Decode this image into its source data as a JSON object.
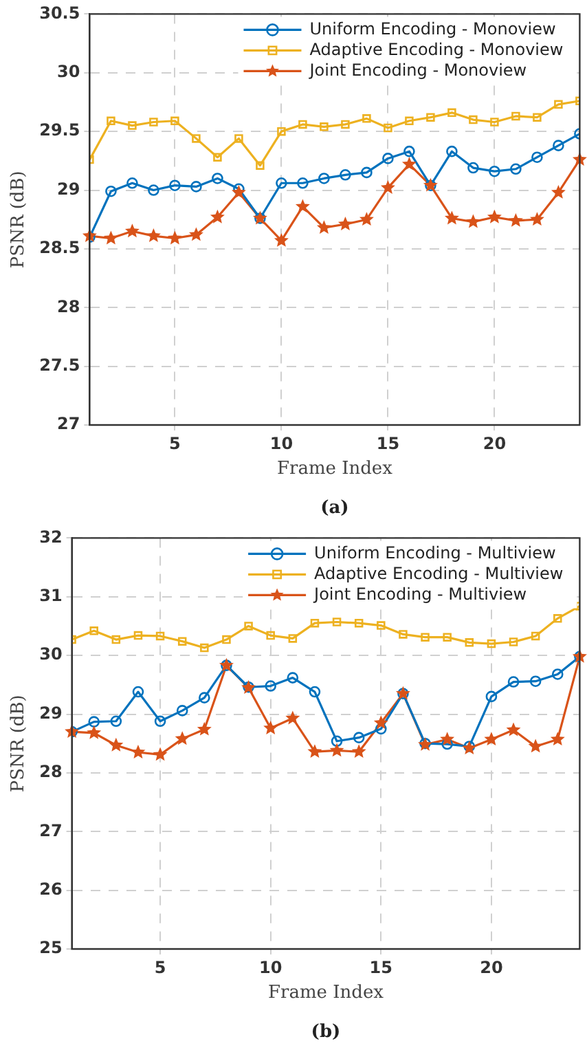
{
  "chart_data": [
    {
      "type": "line",
      "xlabel": "Frame Index",
      "ylabel": "PSNR (dB)",
      "annotations": [
        "(a)"
      ],
      "legend": "top right",
      "grid": true,
      "x": [
        1,
        2,
        3,
        4,
        5,
        6,
        7,
        8,
        9,
        10,
        11,
        12,
        13,
        14,
        15,
        16,
        17,
        18,
        19,
        20,
        21,
        22,
        23,
        24
      ],
      "xlim": [
        1,
        24
      ],
      "xticks": [
        5,
        10,
        15,
        20
      ],
      "ylim": [
        27,
        30.5
      ],
      "yticks": [
        27,
        27.5,
        28,
        28.5,
        29,
        29.5,
        30,
        30.5
      ],
      "series": [
        {
          "name": "Uniform Encoding - Monoview",
          "color": "#0072bd",
          "marker": "circle",
          "values": [
            28.6,
            28.99,
            29.06,
            29.0,
            29.04,
            29.03,
            29.1,
            29.01,
            28.76,
            29.06,
            29.06,
            29.1,
            29.13,
            29.15,
            29.27,
            29.33,
            29.04,
            29.33,
            29.19,
            29.16,
            29.18,
            29.28,
            29.38,
            29.48
          ]
        },
        {
          "name": "Adaptive Encoding - Monoview",
          "color": "#edb120",
          "marker": "square",
          "values": [
            29.26,
            29.59,
            29.55,
            29.58,
            29.59,
            29.44,
            29.28,
            29.44,
            29.21,
            29.5,
            29.56,
            29.54,
            29.56,
            29.61,
            29.53,
            29.59,
            29.62,
            29.66,
            29.6,
            29.58,
            29.63,
            29.62,
            29.73,
            29.76
          ]
        },
        {
          "name": "Joint Encoding - Monoview",
          "color": "#d95319",
          "marker": "star",
          "values": [
            28.61,
            28.59,
            28.65,
            28.61,
            28.59,
            28.62,
            28.77,
            28.98,
            28.76,
            28.57,
            28.86,
            28.68,
            28.71,
            28.75,
            29.02,
            29.22,
            29.04,
            28.76,
            28.73,
            28.77,
            28.74,
            28.75,
            28.98,
            29.26
          ]
        }
      ]
    },
    {
      "type": "line",
      "xlabel": "Frame Index",
      "ylabel": "PSNR (dB)",
      "annotations": [
        "(b)"
      ],
      "legend": "top right",
      "grid": true,
      "x": [
        1,
        2,
        3,
        4,
        5,
        6,
        7,
        8,
        9,
        10,
        11,
        12,
        13,
        14,
        15,
        16,
        17,
        18,
        19,
        20,
        21,
        22,
        23,
        24
      ],
      "xlim": [
        1,
        24
      ],
      "xticks": [
        5,
        10,
        15,
        20
      ],
      "ylim": [
        25,
        32
      ],
      "yticks": [
        25,
        26,
        27,
        28,
        29,
        30,
        31,
        32
      ],
      "series": [
        {
          "name": "Uniform Encoding - Multiview",
          "color": "#0072bd",
          "marker": "circle",
          "values": [
            28.7,
            28.87,
            28.88,
            29.38,
            28.88,
            29.06,
            29.28,
            29.83,
            29.46,
            29.48,
            29.62,
            29.38,
            28.54,
            28.6,
            28.75,
            29.35,
            28.5,
            28.49,
            28.45,
            29.3,
            29.55,
            29.56,
            29.68,
            29.98
          ]
        },
        {
          "name": "Adaptive Encoding - Multiview",
          "color": "#edb120",
          "marker": "square",
          "values": [
            30.27,
            30.42,
            30.27,
            30.34,
            30.33,
            30.24,
            30.13,
            30.27,
            30.5,
            30.34,
            30.29,
            30.55,
            30.57,
            30.55,
            30.51,
            30.36,
            30.31,
            30.31,
            30.22,
            30.2,
            30.23,
            30.33,
            30.63,
            30.84
          ]
        },
        {
          "name": "Joint Encoding - Multiview",
          "color": "#d95319",
          "marker": "star",
          "values": [
            28.7,
            28.68,
            28.47,
            28.35,
            28.31,
            28.58,
            28.74,
            29.83,
            29.45,
            28.76,
            28.93,
            28.36,
            28.38,
            28.36,
            28.85,
            29.35,
            28.48,
            28.57,
            28.42,
            28.57,
            28.73,
            28.45,
            28.57,
            29.98
          ]
        }
      ]
    }
  ]
}
